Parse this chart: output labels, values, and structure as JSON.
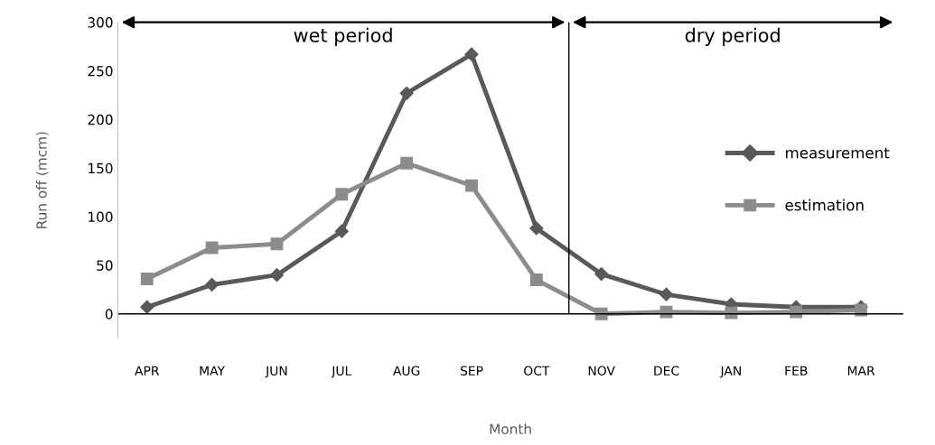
{
  "chart_data": {
    "type": "line",
    "xlabel": "Month",
    "ylabel": "Run off (mcm)",
    "categories": [
      "APR",
      "MAY",
      "JUN",
      "JUL",
      "AUG",
      "SEP",
      "OCT",
      "NOV",
      "DEC",
      "JAN",
      "FEB",
      "MAR"
    ],
    "series": [
      {
        "name": "measurement",
        "color": "#595959",
        "marker": "diamond",
        "values": [
          7,
          30,
          40,
          85,
          227,
          267,
          88,
          41,
          20,
          10,
          7,
          7
        ]
      },
      {
        "name": "estimation",
        "color": "#8c8c8c",
        "marker": "square",
        "values": [
          36,
          68,
          72,
          123,
          155,
          132,
          35,
          0,
          2,
          1,
          2,
          4
        ]
      }
    ],
    "ylim": [
      -25,
      300
    ],
    "yticks": [
      0,
      50,
      100,
      150,
      200,
      250,
      300
    ],
    "ref_lines": [
      {
        "axis": "y",
        "value": 0,
        "color": "#000000"
      }
    ],
    "annotations": [
      "wet period",
      "dry period"
    ],
    "grid": false,
    "legend": "right",
    "line_style": "solid"
  }
}
